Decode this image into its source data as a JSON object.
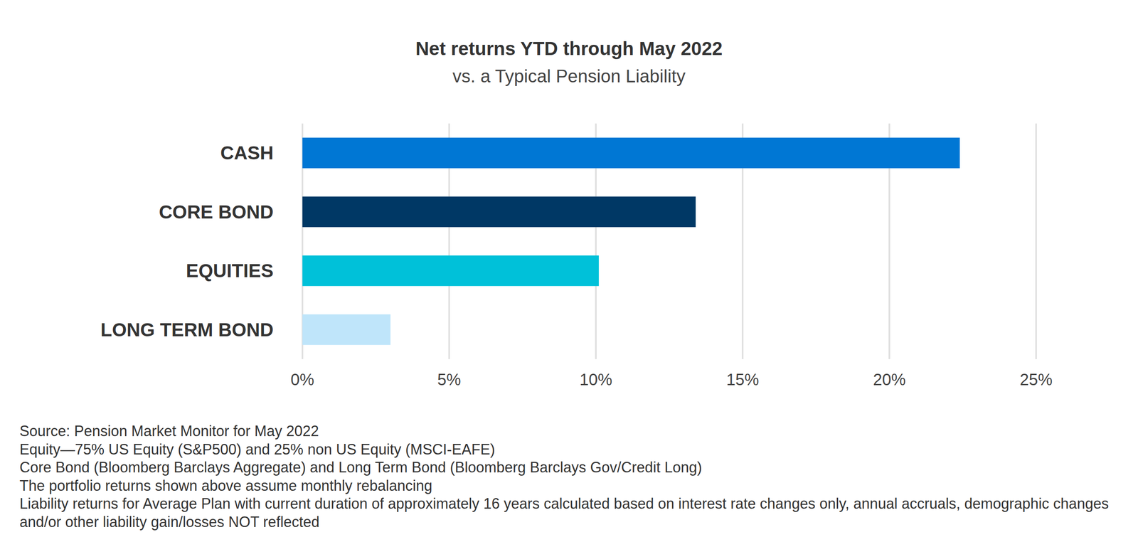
{
  "chart_data": {
    "type": "bar",
    "orientation": "horizontal",
    "title": "Net returns YTD through May 2022",
    "subtitle": "vs. a Typical Pension Liability",
    "categories": [
      "CASH",
      "CORE BOND",
      "EQUITIES",
      "LONG TERM BOND"
    ],
    "values": [
      22.4,
      13.4,
      10.1,
      3.0
    ],
    "colors": [
      "#0077d4",
      "#003865",
      "#00c1d9",
      "#bfe5fa"
    ],
    "xlim": [
      0,
      25
    ],
    "xticks": [
      {
        "value": 0,
        "label": "0%"
      },
      {
        "value": 5,
        "label": "5%"
      },
      {
        "value": 10,
        "label": "10%"
      },
      {
        "value": 15,
        "label": "15%"
      },
      {
        "value": 20,
        "label": "20%"
      },
      {
        "value": 25,
        "label": "25%"
      }
    ],
    "grid": true,
    "annotations": [
      "Source: Pension Market Monitor for May 2022",
      "Equity—75% US Equity (S&P500) and  25% non US Equity (MSCI-EAFE)",
      "Core Bond (Bloomberg Barclays Aggregate) and Long Term Bond (Bloomberg Barclays Gov/Credit Long)",
      "The portfolio returns shown above assume monthly rebalancing",
      "Liability returns for Average Plan with current duration of approximately 16 years calculated based on interest rate changes only, annual accruals, demographic changes and/or other liability gain/losses NOT reflected"
    ]
  }
}
